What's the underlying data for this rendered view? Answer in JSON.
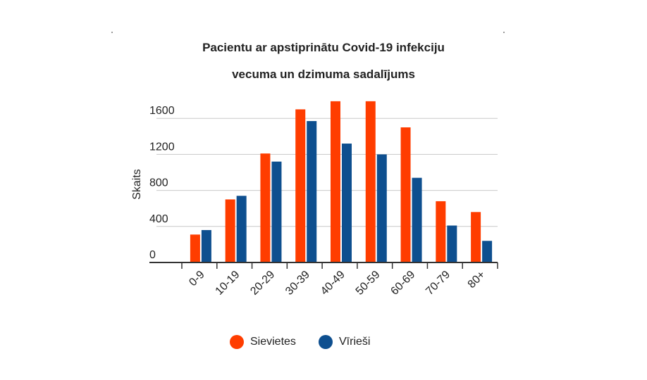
{
  "chart_data": {
    "type": "bar",
    "title": "Pacientu ar apstiprinātu Covid-19 infekciju",
    "subtitle": "vecuma un dzimuma sadalījums",
    "ylabel": "Skaits",
    "xlabel": "",
    "categories": [
      "0-9",
      "10-19",
      "20-29",
      "30-39",
      "40-49",
      "50-59",
      "60-69",
      "70-79",
      "80+"
    ],
    "series": [
      {
        "name": "Sievietes",
        "color": "#ff3d00",
        "values": [
          310,
          700,
          1210,
          1700,
          1790,
          1790,
          1500,
          680,
          560
        ]
      },
      {
        "name": "Vīrieši",
        "color": "#0e4f8f",
        "values": [
          360,
          740,
          1120,
          1570,
          1320,
          1200,
          940,
          410,
          240
        ]
      }
    ],
    "yticks": [
      "0",
      "400",
      "800",
      "1200",
      "1600"
    ],
    "ylim": [
      0,
      1800
    ],
    "grid": true,
    "legend_position": "bottom"
  }
}
